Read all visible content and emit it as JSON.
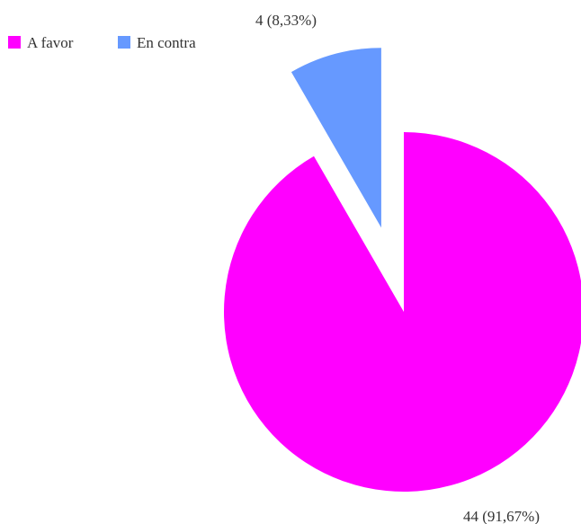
{
  "chart_data": {
    "type": "pie",
    "title": "",
    "legend_position": "top-left",
    "categories": [
      "A favor",
      "En contra"
    ],
    "values": [
      44,
      4
    ],
    "percents": [
      "91,67%",
      "8,33%"
    ],
    "labels": [
      "44 (91,67%)",
      "4 (8,33%)"
    ],
    "colors": [
      "#ff00ff",
      "#6699ff"
    ],
    "exploded": [
      false,
      true
    ]
  }
}
